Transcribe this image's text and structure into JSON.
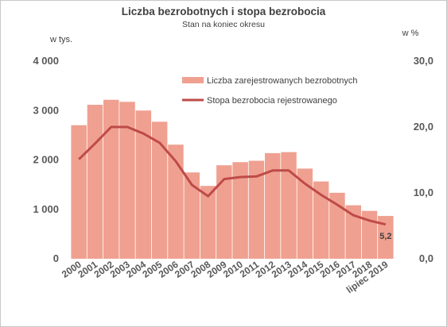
{
  "chart_data": {
    "type": "bar",
    "title": "Liczba bezrobotnych i stopa bezrobocia",
    "subtitle": "Stan na koniec okresu",
    "left_axis_unit": "w tys.",
    "right_axis_unit": "w %",
    "categories": [
      "2000",
      "2001",
      "2002",
      "2003",
      "2004",
      "2005",
      "2006",
      "2007",
      "2008",
      "2009",
      "2010",
      "2011",
      "2012",
      "2013",
      "2014",
      "2015",
      "2016",
      "2017",
      "2018",
      "lipiec 2019"
    ],
    "y_left_range": [
      0,
      4000
    ],
    "y_left_ticks": [
      "0",
      "1 000",
      "2 000",
      "3 000",
      "4 000"
    ],
    "y_left_tick_values": [
      0,
      1000,
      2000,
      3000,
      4000
    ],
    "y_right_range": [
      0,
      30
    ],
    "y_right_ticks": [
      "0,0",
      "10,0",
      "20,0",
      "30,0"
    ],
    "y_right_tick_values": [
      0,
      10,
      20,
      30
    ],
    "grid": false,
    "legend_position": "top-right",
    "series": [
      {
        "name": "Liczba zarejestrowanych bezrobotnych",
        "kind": "bar",
        "axis": "left",
        "color": "#f0a090",
        "values": [
          2703,
          3116,
          3217,
          3176,
          3000,
          2773,
          2309,
          1747,
          1474,
          1892,
          1955,
          1983,
          2137,
          2158,
          1825,
          1564,
          1335,
          1082,
          969,
          866
        ]
      },
      {
        "name": "Stopa bezrobocia rejestrowanego",
        "kind": "line",
        "axis": "right",
        "color": "#be4b48",
        "values": [
          15.1,
          17.5,
          20.0,
          20.0,
          19.0,
          17.6,
          14.8,
          11.2,
          9.5,
          12.1,
          12.4,
          12.5,
          13.4,
          13.4,
          11.4,
          9.7,
          8.2,
          6.6,
          5.8,
          5.2
        ]
      }
    ],
    "data_labels": [
      {
        "category": "lipiec 2019",
        "text": "5,2"
      }
    ]
  }
}
